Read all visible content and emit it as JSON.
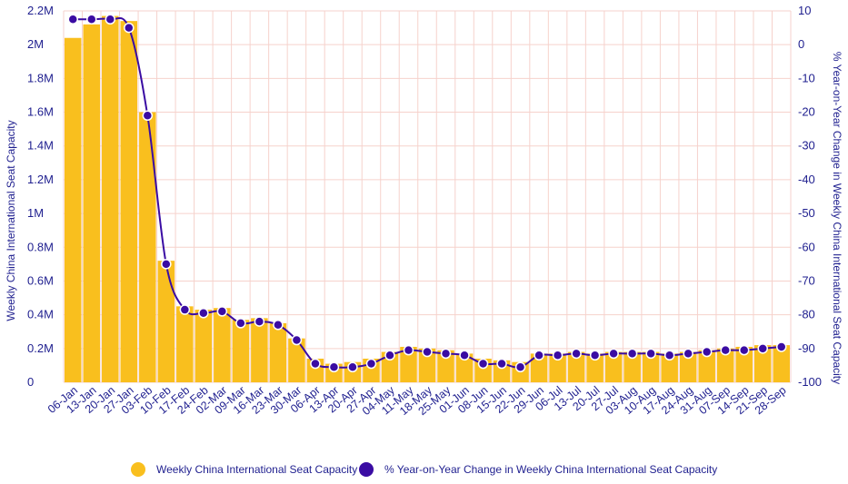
{
  "chart_data": {
    "type": "bar",
    "categories": [
      "06-Jan",
      "13-Jan",
      "20-Jan",
      "27-Jan",
      "03-Feb",
      "10-Feb",
      "17-Feb",
      "24-Feb",
      "02-Mar",
      "09-Mar",
      "16-Mar",
      "23-Mar",
      "30-Mar",
      "06-Apr",
      "13-Apr",
      "20-Apr",
      "27-Apr",
      "04-May",
      "11-May",
      "18-May",
      "25-May",
      "01-Jun",
      "08-Jun",
      "15-Jun",
      "22-Jun",
      "29-Jun",
      "06-Jul",
      "13-Jul",
      "20-Jul",
      "27-Jul",
      "03-Aug",
      "10-Aug",
      "17-Aug",
      "24-Aug",
      "31-Aug",
      "07-Sep",
      "14-Sep",
      "21-Sep",
      "28-Sep"
    ],
    "series": [
      {
        "name": "Weekly China International Seat Capacity",
        "type": "bar",
        "axis": "left",
        "color": "#f9bf1e",
        "values": [
          2040000,
          2120000,
          2170000,
          2140000,
          1600000,
          720000,
          450000,
          430000,
          440000,
          370000,
          380000,
          350000,
          260000,
          140000,
          110000,
          120000,
          140000,
          180000,
          210000,
          200000,
          190000,
          170000,
          140000,
          130000,
          120000,
          170000,
          170000,
          180000,
          170000,
          180000,
          180000,
          180000,
          170000,
          180000,
          190000,
          200000,
          210000,
          220000,
          220000
        ]
      },
      {
        "name": "% Year-on-Year Change in Weekly China International Seat Capacity",
        "type": "line",
        "axis": "right",
        "color": "#3a0ca3",
        "values": [
          7.5,
          7.5,
          7.5,
          5,
          -21,
          -65,
          -78.5,
          -79.5,
          -79,
          -82.5,
          -82,
          -83,
          -87.5,
          -94.5,
          -95.5,
          -95.5,
          -94.5,
          -92,
          -90.5,
          -91,
          -91.5,
          -92,
          -94.5,
          -94.5,
          -95.5,
          -92,
          -92,
          -91.5,
          -92,
          -91.5,
          -91.5,
          -91.5,
          -92,
          -91.5,
          -91,
          -90.5,
          -90.5,
          -90,
          -89.5
        ]
      }
    ],
    "left_axis": {
      "label": "Weekly China International Seat Capacity",
      "ylim": [
        0,
        2200000
      ],
      "ticks": [
        0,
        200000,
        400000,
        600000,
        800000,
        1000000,
        1200000,
        1400000,
        1600000,
        1800000,
        2000000,
        2200000
      ],
      "tick_labels": [
        "0",
        "0.2M",
        "0.4M",
        "0.6M",
        "0.8M",
        "1M",
        "1.2M",
        "1.4M",
        "1.6M",
        "1.8M",
        "2M",
        "2.2M"
      ]
    },
    "right_axis": {
      "label": "% Year-on-Year Change in Weekly China International Seat Capacity",
      "ylim": [
        -100,
        10
      ],
      "ticks": [
        -100,
        -90,
        -80,
        -70,
        -60,
        -50,
        -40,
        -30,
        -20,
        -10,
        0,
        10
      ],
      "tick_labels": [
        "-100",
        "-90",
        "-80",
        "-70",
        "-60",
        "-50",
        "-40",
        "-30",
        "-20",
        "-10",
        "0",
        "10"
      ]
    },
    "grid": true,
    "legend": "bottom-center"
  }
}
